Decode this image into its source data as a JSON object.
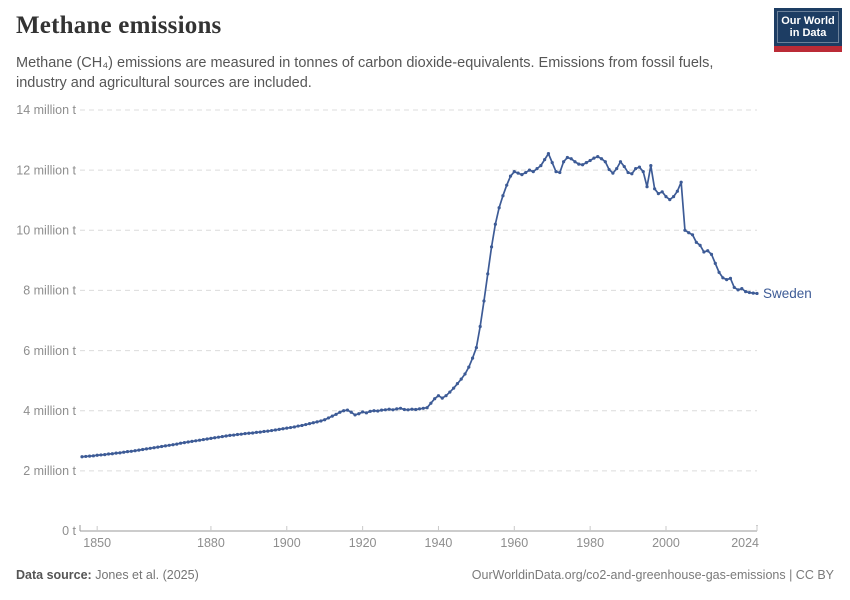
{
  "header": {
    "title": "Methane emissions",
    "subtitle": "Methane (CH₄) emissions are measured in tonnes of carbon dioxide-equivalents. Emissions from fossil fuels, industry and agricultural sources are included."
  },
  "logo": {
    "line1": "Our World",
    "line2": "in Data",
    "bg_color": "#1d3d63",
    "stripe_color": "#bb2b36"
  },
  "footer": {
    "source_label": "Data source:",
    "source_value": " Jones et al. (2025)",
    "link_text": "OurWorldinData.org/co2-and-greenhouse-gas-emissions | CC BY"
  },
  "chart_data": {
    "type": "line",
    "title": "Methane emissions",
    "entity": "Sweden",
    "unit": "tonnes of carbon dioxide-equivalents",
    "line_color": "#3d5b96",
    "grid_color": "#dcdcdc",
    "axis_color": "#999999",
    "tick_mark_color": "#c9c9c9",
    "tick_text_color": "#8e8e8e",
    "grid_on": true,
    "legend_position": "end-of-line-label",
    "x": {
      "start": 1846,
      "end": 2024,
      "step": 1
    },
    "x_ticks": [
      1850,
      1880,
      1900,
      1920,
      1940,
      1960,
      1980,
      2000,
      2024
    ],
    "y_ticks": [
      {
        "value": 0,
        "label": "0 t"
      },
      {
        "value": 2,
        "label": "2 million t"
      },
      {
        "value": 4,
        "label": "4 million t"
      },
      {
        "value": 6,
        "label": "6 million t"
      },
      {
        "value": 8,
        "label": "8 million t"
      },
      {
        "value": 10,
        "label": "10 million t"
      },
      {
        "value": 12,
        "label": "12 million t"
      },
      {
        "value": 14,
        "label": "14 million t"
      }
    ],
    "ylim": [
      0,
      14
    ],
    "y_values_are": "million tonnes CO2-eq",
    "series": [
      {
        "name": "Sweden",
        "values": [
          2.47,
          2.48,
          2.49,
          2.5,
          2.52,
          2.53,
          2.54,
          2.56,
          2.57,
          2.59,
          2.6,
          2.62,
          2.64,
          2.65,
          2.67,
          2.69,
          2.71,
          2.73,
          2.75,
          2.77,
          2.79,
          2.81,
          2.83,
          2.85,
          2.87,
          2.89,
          2.92,
          2.94,
          2.96,
          2.98,
          3.0,
          3.02,
          3.04,
          3.06,
          3.08,
          3.1,
          3.12,
          3.14,
          3.16,
          3.18,
          3.19,
          3.21,
          3.22,
          3.24,
          3.25,
          3.26,
          3.28,
          3.29,
          3.31,
          3.32,
          3.34,
          3.36,
          3.38,
          3.4,
          3.42,
          3.44,
          3.46,
          3.49,
          3.51,
          3.54,
          3.57,
          3.6,
          3.63,
          3.66,
          3.7,
          3.76,
          3.82,
          3.88,
          3.95,
          4.0,
          4.02,
          3.95,
          3.86,
          3.9,
          3.96,
          3.93,
          3.98,
          4.0,
          3.99,
          4.02,
          4.03,
          4.05,
          4.03,
          4.06,
          4.08,
          4.04,
          4.03,
          4.05,
          4.04,
          4.06,
          4.08,
          4.1,
          4.25,
          4.4,
          4.5,
          4.42,
          4.5,
          4.62,
          4.75,
          4.9,
          5.05,
          5.22,
          5.45,
          5.75,
          6.1,
          6.8,
          7.65,
          8.55,
          9.45,
          10.2,
          10.75,
          11.15,
          11.5,
          11.8,
          11.95,
          11.9,
          11.85,
          11.92,
          12.0,
          11.95,
          12.05,
          12.15,
          12.35,
          12.55,
          12.25,
          11.95,
          11.92,
          12.28,
          12.42,
          12.38,
          12.28,
          12.2,
          12.18,
          12.25,
          12.32,
          12.4,
          12.45,
          12.38,
          12.28,
          12.02,
          11.9,
          12.05,
          12.28,
          12.12,
          11.92,
          11.88,
          12.05,
          12.1,
          11.95,
          11.45,
          12.15,
          11.38,
          11.22,
          11.28,
          11.12,
          11.02,
          11.12,
          11.3,
          11.6,
          10.0,
          9.92,
          9.85,
          9.6,
          9.5,
          9.28,
          9.32,
          9.2,
          8.9,
          8.6,
          8.42,
          8.36,
          8.4,
          8.1,
          8.02,
          8.06,
          7.96,
          7.93,
          7.91,
          7.9
        ]
      }
    ]
  }
}
